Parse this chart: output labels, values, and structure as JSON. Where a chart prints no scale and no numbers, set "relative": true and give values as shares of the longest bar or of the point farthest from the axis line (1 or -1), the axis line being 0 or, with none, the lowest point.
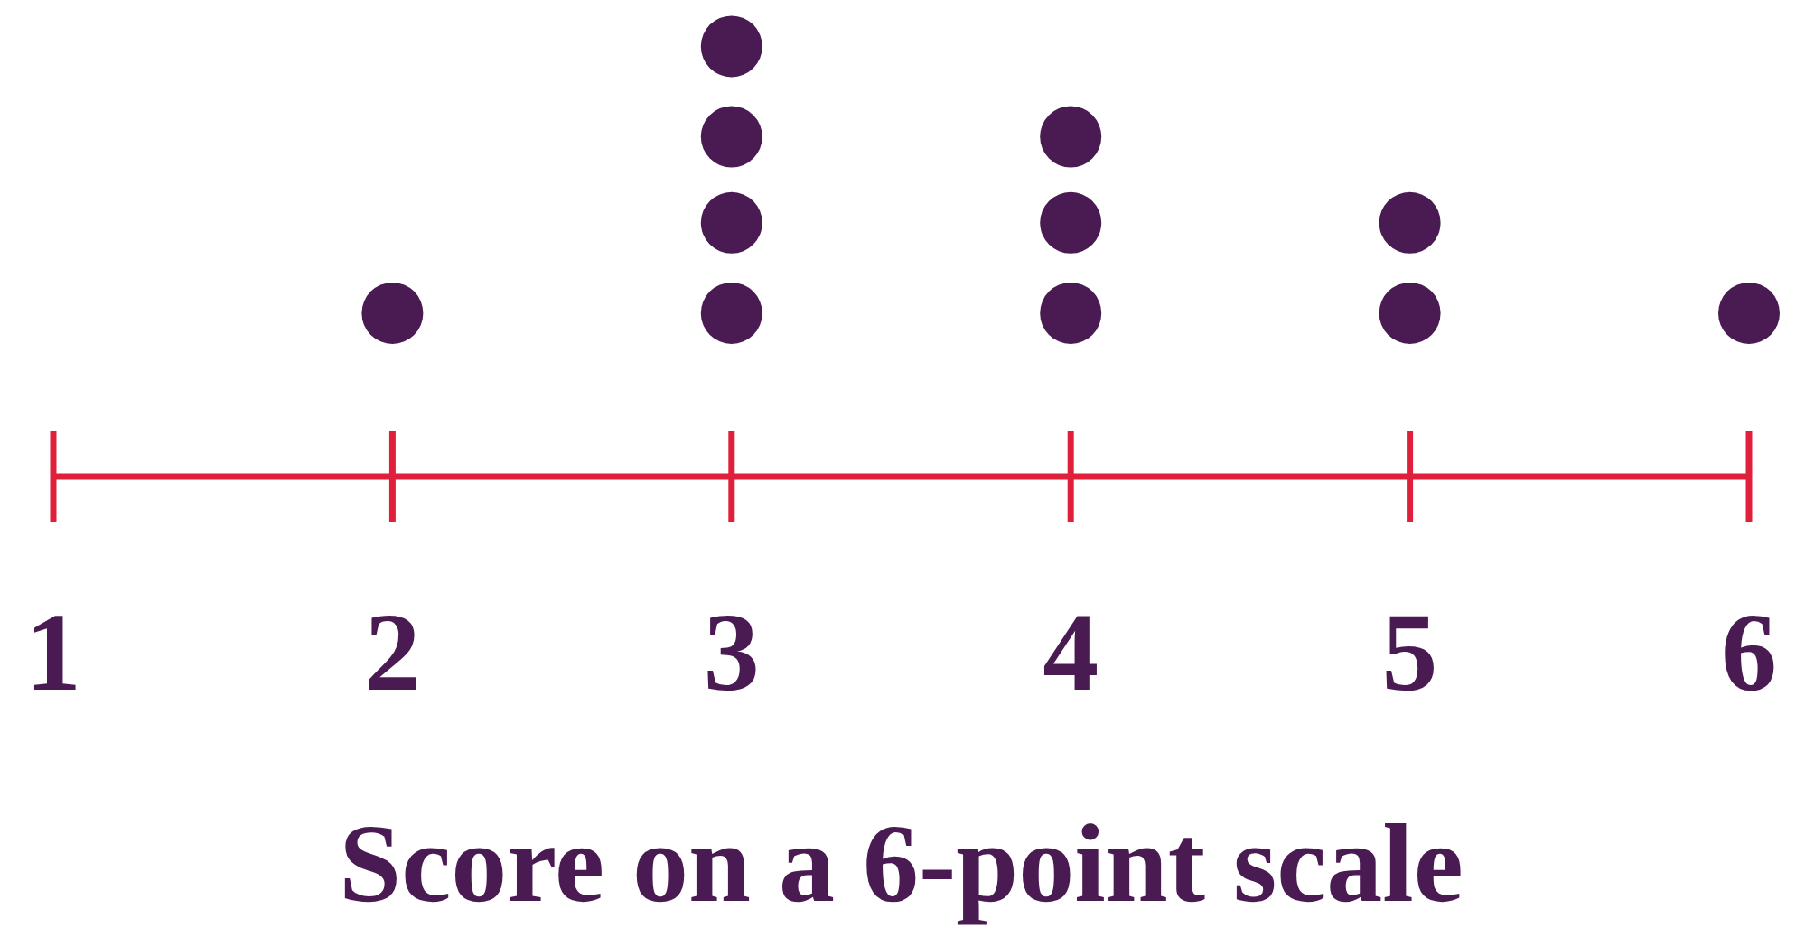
{
  "chart_data": {
    "type": "scatter",
    "xlabel": "Score on a 6-point scale",
    "x": [
      2,
      3,
      3,
      3,
      3,
      4,
      4,
      4,
      5,
      5,
      6
    ],
    "series": [
      {
        "color": "#4a1a52",
        "values": [
          0.38,
          0.38,
          0.59,
          0.79,
          1,
          0.38,
          0.59,
          0.79,
          0.38,
          0.59,
          0.38
        ]
      }
    ],
    "relative": true,
    "xlim": [
      1,
      6
    ],
    "xticks": [
      1,
      2,
      3,
      4,
      5,
      6
    ],
    "tick_labels": "x",
    "marker": "circle"
  }
}
